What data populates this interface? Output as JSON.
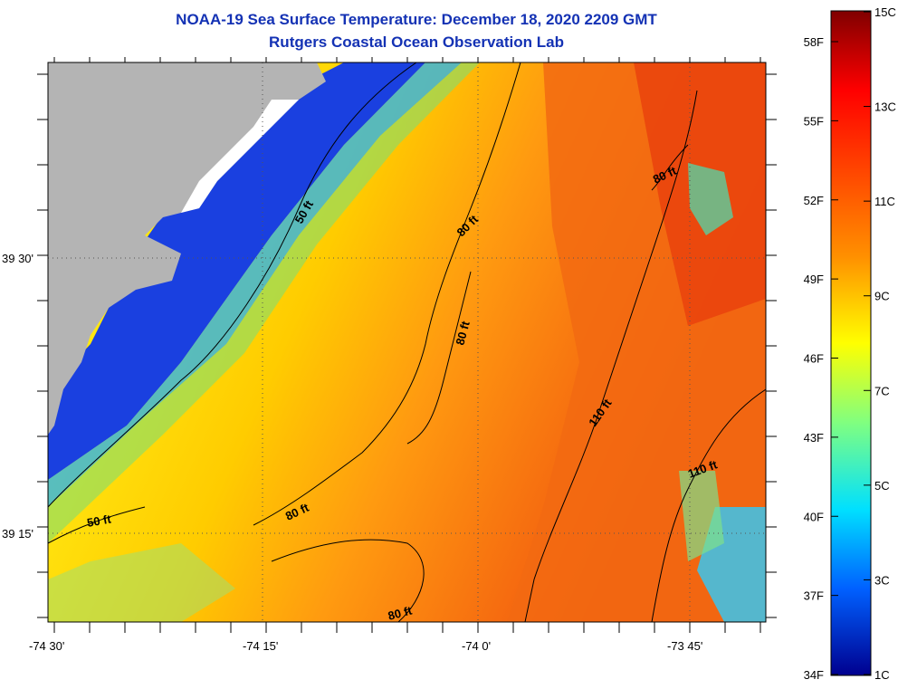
{
  "title": "NOAA-19 Sea Surface Temperature:  December 18, 2020 2209 GMT",
  "subtitle": "Rutgers Coastal Ocean Observation Lab",
  "map": {
    "lon_ticks": [
      "-74 30'",
      "-74 15'",
      "-74 0'",
      "-73 45'"
    ],
    "lat_ticks": [
      "39 30'",
      "39 15'"
    ],
    "contour_labels": [
      "50 ft",
      "80 ft",
      "80 ft",
      "80 ft",
      "110 ft",
      "80 ft",
      "110 ft",
      "50 ft",
      "80 ft"
    ],
    "land_color": "#b4b4b4",
    "grid": "dotted"
  },
  "colorbar": {
    "f_labels": [
      "58F",
      "55F",
      "52F",
      "49F",
      "46F",
      "43F",
      "40F",
      "37F",
      "34F"
    ],
    "c_labels": [
      "15C",
      "13C",
      "11C",
      "9C",
      "7C",
      "5C",
      "3C",
      "1C"
    ],
    "colors": [
      "#00008f",
      "#0000ff",
      "#0080ff",
      "#00ffff",
      "#80ff80",
      "#ffff00",
      "#ff8000",
      "#ff0000",
      "#800000"
    ]
  }
}
